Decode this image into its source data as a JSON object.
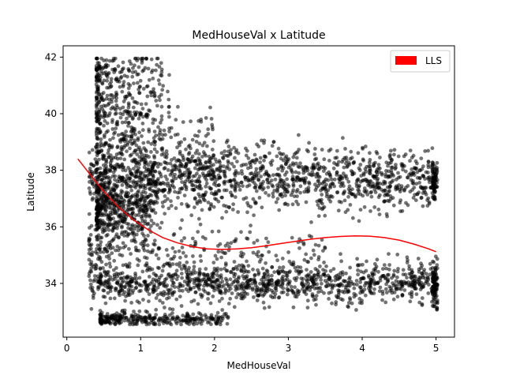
{
  "chart_data": {
    "type": "scatter",
    "title": "MedHouseVal x Latitude",
    "xlabel": "MedHouseVal",
    "ylabel": "Latitude",
    "xlim": [
      -0.05,
      5.25
    ],
    "ylim": [
      32.1,
      42.4
    ],
    "xticks": [
      0,
      1,
      2,
      3,
      4,
      5
    ],
    "yticks": [
      34,
      36,
      38,
      40,
      42
    ],
    "legend": {
      "position": "top-right",
      "entries": [
        {
          "label": "LLS",
          "color": "#ff0000"
        }
      ]
    },
    "series": [
      {
        "name": "data",
        "kind": "scatter",
        "color": "#000000",
        "opacity": 0.55,
        "clusters": [
          {
            "x_range": [
              0.3,
              5.0
            ],
            "lat_center": 34.0,
            "lat_spread": 0.35,
            "count": 1100,
            "x_bias": "uniform"
          },
          {
            "x_range": [
              0.45,
              2.2
            ],
            "lat_center": 32.75,
            "lat_spread": 0.12,
            "count": 300,
            "x_bias": "low"
          },
          {
            "x_range": [
              0.3,
              5.0
            ],
            "lat_center": 37.7,
            "lat_spread": 0.55,
            "count": 1300,
            "x_bias": "uniform"
          },
          {
            "x_range": [
              0.4,
              2.0
            ],
            "lat_center": 38.6,
            "lat_spread": 0.7,
            "count": 350,
            "x_bias": "low"
          },
          {
            "x_range": [
              0.4,
              1.4
            ],
            "lat_center": 40.4,
            "lat_spread": 0.75,
            "count": 260,
            "x_bias": "low"
          },
          {
            "x_range": [
              0.4,
              1.3
            ],
            "lat_center": 41.6,
            "lat_spread": 0.25,
            "count": 90,
            "x_bias": "low"
          },
          {
            "x_range": [
              0.4,
              1.2
            ],
            "lat_center": 36.6,
            "lat_spread": 0.5,
            "count": 420,
            "x_bias": "low"
          },
          {
            "x_range": [
              0.3,
              3.5
            ],
            "lat_center": 35.2,
            "lat_spread": 0.45,
            "count": 250,
            "x_bias": "low"
          },
          {
            "x_range": [
              4.95,
              5.02
            ],
            "lat_center": 34.0,
            "lat_spread": 0.4,
            "count": 90,
            "x_bias": "uniform"
          },
          {
            "x_range": [
              4.95,
              5.02
            ],
            "lat_center": 37.6,
            "lat_spread": 0.3,
            "count": 70,
            "x_bias": "uniform"
          }
        ]
      },
      {
        "name": "LLS",
        "kind": "line",
        "color": "#ff0000",
        "x": [
          0.15,
          0.3,
          0.5,
          0.7,
          0.9,
          1.1,
          1.3,
          1.5,
          1.7,
          1.9,
          2.1,
          2.3,
          2.5,
          2.7,
          2.9,
          3.1,
          3.3,
          3.5,
          3.7,
          3.9,
          4.1,
          4.3,
          4.5,
          4.7,
          4.9,
          5.0
        ],
        "y": [
          38.4,
          37.9,
          37.25,
          36.7,
          36.25,
          35.9,
          35.62,
          35.43,
          35.3,
          35.22,
          35.2,
          35.22,
          35.26,
          35.33,
          35.41,
          35.49,
          35.56,
          35.62,
          35.66,
          35.68,
          35.67,
          35.62,
          35.53,
          35.39,
          35.22,
          35.12
        ]
      }
    ]
  }
}
